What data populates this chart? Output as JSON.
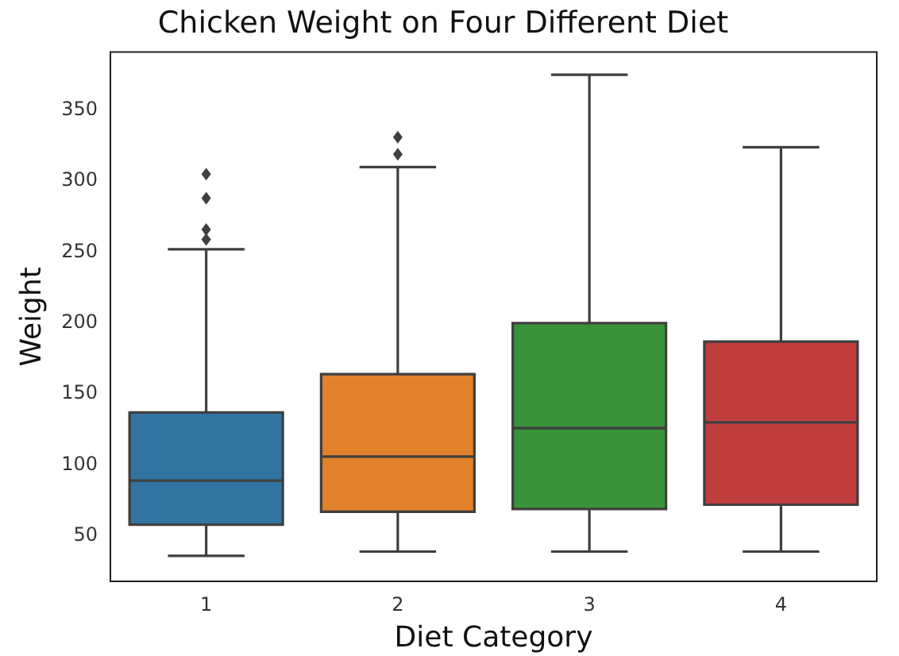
{
  "chart_data": {
    "type": "box",
    "title": "Chicken Weight on Four Different Diet",
    "xlabel": "Diet Category",
    "ylabel": "Weight",
    "categories": [
      "1",
      "2",
      "3",
      "4"
    ],
    "colors": [
      "#3274a1",
      "#e1812c",
      "#3a923a",
      "#c03d3e"
    ],
    "boxes": [
      {
        "low": 36,
        "q1": 58,
        "median": 89,
        "q3": 137,
        "high": 252,
        "outliers": [
          259,
          266,
          288,
          305
        ]
      },
      {
        "low": 39,
        "q1": 67,
        "median": 106,
        "q3": 164,
        "high": 310,
        "outliers": [
          319,
          331
        ]
      },
      {
        "low": 39,
        "q1": 69,
        "median": 126,
        "q3": 200,
        "high": 375
      },
      {
        "low": 39,
        "q1": 72,
        "median": 130,
        "q3": 187,
        "high": 324
      }
    ],
    "ylim": [
      18,
      391
    ],
    "yticks": [
      50,
      100,
      150,
      200,
      250,
      300,
      350
    ],
    "grid": false,
    "legend": false
  }
}
